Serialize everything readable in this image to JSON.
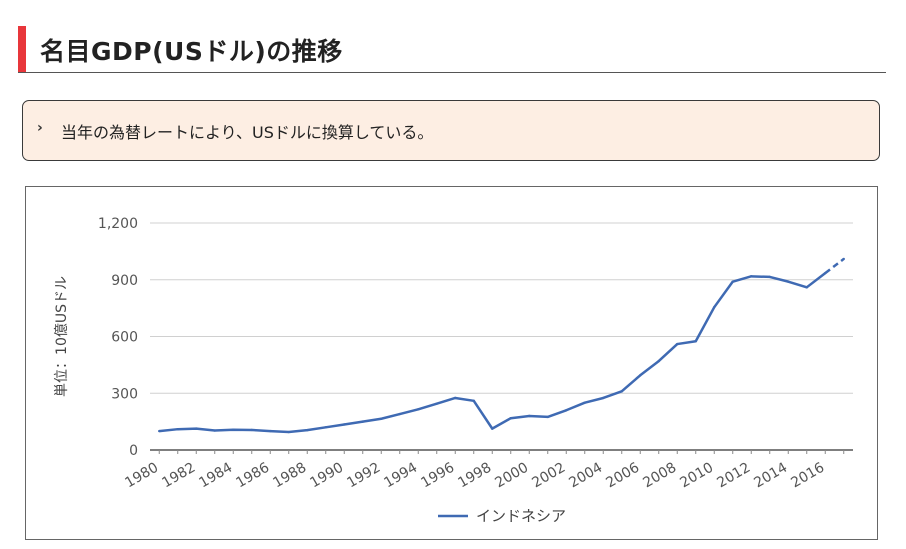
{
  "header": {
    "title": "名目GDP(USドル)の推移",
    "accent_color": "#e8363b"
  },
  "note": {
    "bullet": "›",
    "text": "当年の為替レートにより、USドルに換算している。",
    "background_color": "#fdeee3"
  },
  "chart_data": {
    "type": "line",
    "ylabel": "単位：10億USドル",
    "xlabel": "",
    "ylim": [
      0,
      1200
    ],
    "yticks": [
      "0",
      "300",
      "600",
      "900",
      "1,200"
    ],
    "xtick_labels": [
      "1980",
      "1982",
      "1984",
      "1986",
      "1988",
      "1990",
      "1992",
      "1994",
      "1996",
      "1998",
      "2000",
      "2002",
      "2004",
      "2006",
      "2008",
      "2010",
      "2012",
      "2014",
      "2016"
    ],
    "grid": true,
    "legend_position": "bottom",
    "line_color": "#3f6ab3",
    "estimate_from_year": 2016,
    "series": [
      {
        "name": "インドネシア",
        "x": [
          1980,
          1981,
          1982,
          1983,
          1984,
          1985,
          1986,
          1987,
          1988,
          1989,
          1990,
          1991,
          1992,
          1993,
          1994,
          1995,
          1996,
          1997,
          1998,
          1999,
          2000,
          2001,
          2002,
          2003,
          2004,
          2005,
          2006,
          2007,
          2008,
          2009,
          2010,
          2011,
          2012,
          2013,
          2014,
          2015,
          2016,
          2017
        ],
        "values": [
          100,
          110,
          113,
          103,
          107,
          106,
          100,
          95,
          105,
          120,
          135,
          150,
          165,
          190,
          215,
          245,
          275,
          260,
          113,
          168,
          180,
          175,
          210,
          250,
          275,
          310,
          395,
          470,
          560,
          575,
          755,
          890,
          918,
          915,
          890,
          860,
          935,
          1010
        ]
      }
    ]
  }
}
